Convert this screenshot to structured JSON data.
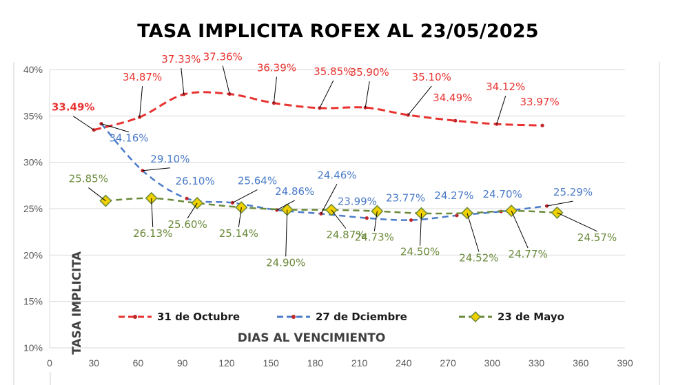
{
  "title": "TASA IMPLICITA ROFEX AL 23/05/2025",
  "chart_data": {
    "type": "line",
    "title": "TASA IMPLICITA ROFEX AL 23/05/2025",
    "xlabel": "DIAS AL VENCIMIENTO",
    "ylabel": "TASA IMPLICITA",
    "xlim": [
      0,
      390
    ],
    "ylim": [
      10,
      40
    ],
    "xticks": [
      0,
      30,
      60,
      90,
      120,
      150,
      180,
      210,
      240,
      270,
      300,
      330,
      360,
      390
    ],
    "yticks": [
      10,
      15,
      20,
      25,
      30,
      35,
      40
    ],
    "y_tick_labels": [
      "10%",
      "15%",
      "20%",
      "25%",
      "30%",
      "35%",
      "40%"
    ],
    "grid": true,
    "legend_position": "bottom-inside",
    "series": [
      {
        "name": "31 de Octubre",
        "color": "#e8322f",
        "marker": "dot",
        "x": [
          30,
          61,
          91,
          122,
          152,
          183,
          214,
          243,
          275,
          303,
          334
        ],
        "y": [
          33.49,
          34.87,
          37.33,
          37.36,
          36.39,
          35.85,
          35.9,
          35.1,
          34.49,
          34.12,
          33.97
        ],
        "labels": [
          "33.49%",
          "34.87%",
          "37.33%",
          "37.36%",
          "36.39%",
          "35.85%",
          "35.90%",
          "35.10%",
          "34.49%",
          "34.12%",
          "33.97%"
        ]
      },
      {
        "name": "27 de Dciembre",
        "color": "#4a7bc8",
        "marker": "dot",
        "x": [
          35,
          63,
          93,
          124,
          154,
          184,
          215,
          245,
          276,
          306,
          337
        ],
        "y": [
          34.16,
          29.1,
          26.1,
          25.64,
          24.86,
          24.46,
          23.99,
          23.77,
          24.27,
          24.7,
          25.29
        ],
        "labels": [
          "34.16%",
          "29.10%",
          "26.10%",
          "25.64%",
          "24.86%",
          "24.46%",
          "23.99%",
          "23.77%",
          "24.27%",
          "24.70%",
          "25.29%"
        ]
      },
      {
        "name": "23 de Mayo",
        "color": "#6a8a3a",
        "marker": "diamond",
        "x": [
          38,
          69,
          100,
          130,
          161,
          191,
          222,
          252,
          283,
          313,
          344
        ],
        "y": [
          25.85,
          26.13,
          25.6,
          25.14,
          24.9,
          24.87,
          24.73,
          24.5,
          24.52,
          24.77,
          24.57
        ],
        "labels": [
          "25.85%",
          "26.13%",
          "25.60%",
          "25.14%",
          "24.90%",
          "24.87%",
          "24.73%",
          "24.50%",
          "24.52%",
          "24.77%",
          "24.57%"
        ]
      }
    ]
  }
}
